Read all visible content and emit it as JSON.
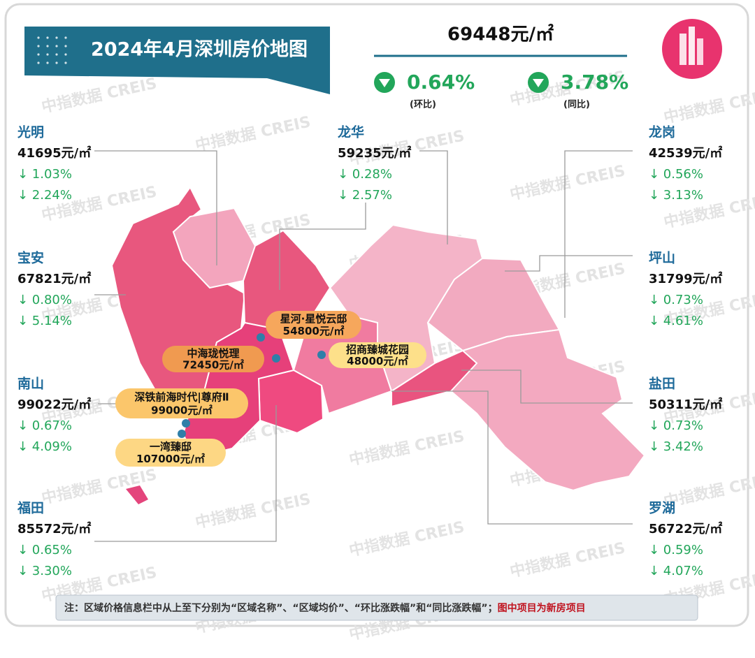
{
  "header": {
    "title": "2024年4月深圳房价地图"
  },
  "overall": {
    "price": "69448元/㎡",
    "changes": [
      {
        "value": "0.64%",
        "label": "(环比)"
      },
      {
        "value": "3.78%",
        "label": "(同比)"
      }
    ]
  },
  "districts": [
    {
      "name": "光明",
      "price": "41695元/㎡",
      "mom": "↓ 1.03%",
      "yoy": "↓ 2.24%"
    },
    {
      "name": "宝安",
      "price": "67821元/㎡",
      "mom": "↓ 0.80%",
      "yoy": "↓ 5.14%"
    },
    {
      "name": "南山",
      "price": "99022元/㎡",
      "mom": "↓ 0.67%",
      "yoy": "↓ 4.09%"
    },
    {
      "name": "福田",
      "price": "85572元/㎡",
      "mom": "↓ 0.65%",
      "yoy": "↓ 3.30%"
    },
    {
      "name": "龙华",
      "price": "59235元/㎡",
      "mom": "↓ 0.28%",
      "yoy": "↓ 2.57%"
    },
    {
      "name": "龙岗",
      "price": "42539元/㎡",
      "mom": "↓ 0.56%",
      "yoy": "↓ 3.13%"
    },
    {
      "name": "坪山",
      "price": "31799元/㎡",
      "mom": "↓ 0.73%",
      "yoy": "↓ 4.61%"
    },
    {
      "name": "盐田",
      "price": "50311元/㎡",
      "mom": "↓ 0.73%",
      "yoy": "↓ 3.42%"
    },
    {
      "name": "罗湖",
      "price": "56722元/㎡",
      "mom": "↓ 0.59%",
      "yoy": "↓ 4.07%"
    }
  ],
  "projects": [
    {
      "name": "星河·星悦云邸",
      "price": "54800元/㎡"
    },
    {
      "name": "中海珑悦理",
      "price": "72450元/㎡"
    },
    {
      "name": "招商臻城花园",
      "price": "48000元/㎡"
    },
    {
      "name": "深铁前海时代|尊府Ⅱ",
      "price": "99000元/㎡"
    },
    {
      "name": "一湾臻邸",
      "price": "107000元/㎡"
    }
  ],
  "note": {
    "text": "注：区域价格信息栏中从上至下分别为“区域名称”、“区域均价”、“环比涨跌幅”和“同比涨跌幅”；",
    "highlight": "图中项目为新房项目"
  },
  "watermark": "中指数据 CREIS"
}
